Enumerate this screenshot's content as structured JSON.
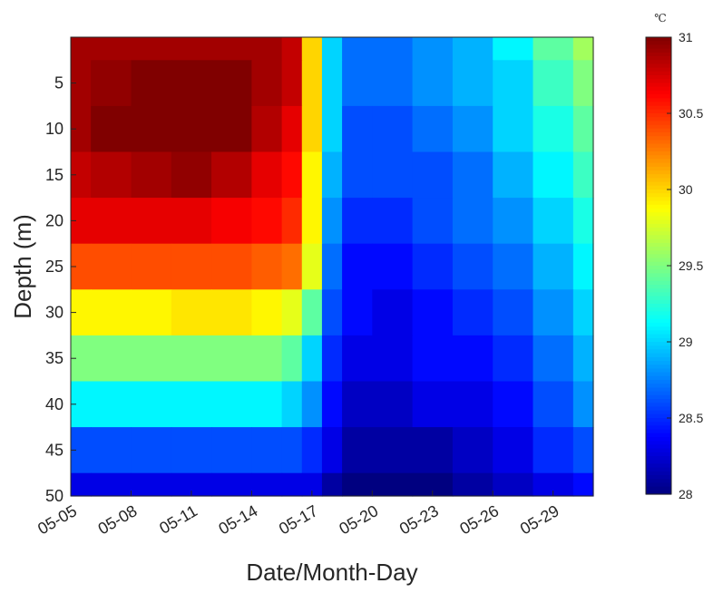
{
  "chart_data": {
    "type": "heatmap",
    "title": "",
    "xlabel": "Date/Month-Day",
    "ylabel": "Depth (m)",
    "x_ticks": [
      "05-05",
      "05-08",
      "05-11",
      "05-14",
      "05-17",
      "05-20",
      "05-23",
      "05-26",
      "05-29"
    ],
    "y_ticks": [
      "5",
      "10",
      "15",
      "20",
      "25",
      "30",
      "35",
      "40",
      "45",
      "50"
    ],
    "ylim": [
      0,
      50
    ],
    "y_reversed": true,
    "colorbar": {
      "unit": "℃",
      "range": [
        28,
        31
      ],
      "ticks": [
        "28",
        "28.5",
        "29",
        "29.5",
        "30",
        "30.5",
        "31"
      ],
      "colormap": "jet"
    },
    "x_days": [
      "05-05",
      "05-07",
      "05-09",
      "05-11",
      "05-13",
      "05-15",
      "05-16",
      "05-17",
      "05-18",
      "05-19",
      "05-21",
      "05-23",
      "05-25",
      "05-27",
      "05-29",
      "05-31"
    ],
    "depths_m": [
      0,
      5,
      10,
      15,
      20,
      25,
      30,
      35,
      40,
      45,
      50
    ],
    "temperature_c": [
      [
        30.9,
        30.9,
        30.9,
        30.9,
        30.9,
        30.9,
        30.8,
        30.0,
        29.0,
        28.7,
        28.7,
        28.8,
        28.9,
        29.1,
        29.4,
        29.6
      ],
      [
        30.9,
        30.95,
        31.0,
        31.0,
        31.0,
        30.9,
        30.8,
        30.0,
        29.0,
        28.7,
        28.7,
        28.8,
        28.9,
        29.0,
        29.3,
        29.5
      ],
      [
        30.9,
        31.0,
        31.0,
        31.0,
        31.0,
        30.85,
        30.7,
        30.0,
        29.0,
        28.6,
        28.6,
        28.7,
        28.8,
        29.0,
        29.2,
        29.4
      ],
      [
        30.8,
        30.85,
        30.9,
        30.95,
        30.85,
        30.7,
        30.6,
        29.9,
        28.9,
        28.6,
        28.6,
        28.6,
        28.7,
        28.9,
        29.1,
        29.3
      ],
      [
        30.7,
        30.7,
        30.7,
        30.7,
        30.65,
        30.6,
        30.5,
        29.9,
        28.8,
        28.5,
        28.5,
        28.6,
        28.7,
        28.8,
        29.0,
        29.2
      ],
      [
        30.4,
        30.4,
        30.4,
        30.4,
        30.4,
        30.35,
        30.3,
        29.8,
        28.7,
        28.4,
        28.4,
        28.5,
        28.6,
        28.7,
        28.9,
        29.1
      ],
      [
        29.9,
        29.9,
        29.9,
        29.95,
        29.95,
        29.9,
        29.8,
        29.4,
        28.6,
        28.4,
        28.3,
        28.4,
        28.5,
        28.6,
        28.8,
        29.0
      ],
      [
        29.5,
        29.5,
        29.5,
        29.5,
        29.5,
        29.5,
        29.4,
        29.0,
        28.5,
        28.3,
        28.3,
        28.4,
        28.4,
        28.5,
        28.7,
        28.9
      ],
      [
        29.1,
        29.1,
        29.1,
        29.1,
        29.1,
        29.1,
        29.0,
        28.8,
        28.4,
        28.2,
        28.2,
        28.3,
        28.3,
        28.4,
        28.6,
        28.8
      ],
      [
        28.6,
        28.6,
        28.6,
        28.6,
        28.6,
        28.6,
        28.6,
        28.5,
        28.3,
        28.1,
        28.1,
        28.1,
        28.2,
        28.3,
        28.5,
        28.6
      ],
      [
        28.3,
        28.3,
        28.3,
        28.3,
        28.3,
        28.3,
        28.3,
        28.3,
        28.1,
        28.0,
        28.0,
        28.0,
        28.1,
        28.2,
        28.3,
        28.4
      ]
    ]
  }
}
